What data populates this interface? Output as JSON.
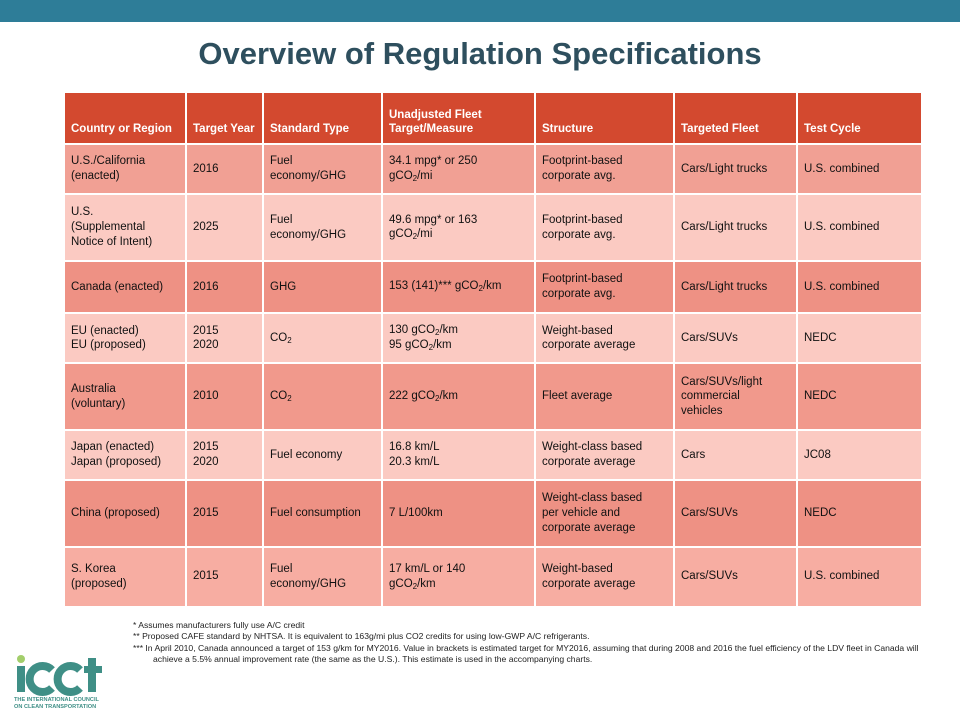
{
  "slide": {
    "title": "Overview of Regulation Specifications",
    "accent_color": "#2e7d98",
    "header_color": "#d3492f"
  },
  "table": {
    "headers": [
      "Country or Region",
      "Target Year",
      "Standard Type",
      "Unadjusted Fleet Target/Measure",
      "Structure",
      "Targeted Fleet",
      "Test Cycle"
    ],
    "rows": [
      {
        "region": [
          "U.S./California",
          "(enacted)"
        ],
        "year": [
          "2016"
        ],
        "standard": [
          "Fuel",
          "economy/GHG"
        ],
        "target": [
          [
            {
              "t": "34.1 mpg* or 250"
            }
          ],
          [
            {
              "t": "gCO"
            },
            {
              "s": "2"
            },
            {
              "t": "/mi"
            }
          ]
        ],
        "structure": [
          "Footprint-based",
          "corporate avg."
        ],
        "fleet": [
          "Cars/Light trucks"
        ],
        "cycle": "U.S. combined"
      },
      {
        "region": [
          "U.S.",
          "(Supplemental",
          "Notice of Intent)"
        ],
        "year": [
          "2025"
        ],
        "standard": [
          "Fuel",
          "economy/GHG"
        ],
        "target": [
          [
            {
              "t": "49.6 mpg* or 163"
            }
          ],
          [
            {
              "t": "gCO"
            },
            {
              "s": "2"
            },
            {
              "t": "/mi"
            }
          ]
        ],
        "structure": [
          "Footprint-based",
          "corporate avg."
        ],
        "fleet": [
          "Cars/Light trucks"
        ],
        "cycle": "U.S. combined"
      },
      {
        "region": [
          "Canada (enacted)"
        ],
        "year": [
          "2016"
        ],
        "standard": [
          "GHG"
        ],
        "target": [
          [
            {
              "t": "153 (141)*** gCO"
            },
            {
              "s": "2"
            },
            {
              "t": "/km"
            }
          ]
        ],
        "structure": [
          "Footprint-based",
          "corporate avg."
        ],
        "fleet": [
          "Cars/Light trucks"
        ],
        "cycle": "U.S. combined"
      },
      {
        "region": [
          "EU (enacted)",
          "EU (proposed)"
        ],
        "year": [
          "2015",
          "2020"
        ],
        "standard_parts": [
          {
            "t": "CO"
          },
          {
            "s": "2"
          }
        ],
        "target": [
          [
            {
              "t": "130 gCO"
            },
            {
              "s": "2"
            },
            {
              "t": "/km"
            }
          ],
          [
            {
              "t": "95 gCO"
            },
            {
              "s": "2"
            },
            {
              "t": "/km"
            }
          ]
        ],
        "structure": [
          "Weight-based",
          "corporate average"
        ],
        "fleet": [
          "Cars/SUVs"
        ],
        "cycle": "NEDC"
      },
      {
        "region": [
          "Australia",
          "(voluntary)"
        ],
        "year": [
          "2010"
        ],
        "standard_parts": [
          {
            "t": "CO"
          },
          {
            "s": "2"
          }
        ],
        "target": [
          [
            {
              "t": "222 gCO"
            },
            {
              "s": "2"
            },
            {
              "t": "/km"
            }
          ]
        ],
        "structure": [
          "Fleet average"
        ],
        "fleet": [
          "Cars/SUVs/light",
          "commercial",
          "vehicles"
        ],
        "cycle": "NEDC"
      },
      {
        "region": [
          "Japan (enacted)",
          "Japan (proposed)"
        ],
        "year": [
          "2015",
          "2020"
        ],
        "standard": [
          "Fuel economy"
        ],
        "target": [
          [
            {
              "t": "16.8 km/L"
            }
          ],
          [
            {
              "t": "20.3 km/L"
            }
          ]
        ],
        "structure": [
          "Weight-class based",
          "corporate average"
        ],
        "fleet": [
          "Cars"
        ],
        "cycle": "JC08"
      },
      {
        "region": [
          "China (proposed)"
        ],
        "year": [
          "2015"
        ],
        "standard": [
          "Fuel consumption"
        ],
        "target": [
          [
            {
              "t": "7 L/100km"
            }
          ]
        ],
        "structure": [
          "Weight-class based",
          "per vehicle and",
          "corporate average"
        ],
        "fleet": [
          "Cars/SUVs"
        ],
        "cycle": "NEDC"
      },
      {
        "region": [
          "S. Korea",
          "(proposed)"
        ],
        "year": [
          "2015"
        ],
        "standard": [
          "Fuel",
          "economy/GHG"
        ],
        "target": [
          [
            {
              "t": "17 km/L or 140"
            }
          ],
          [
            {
              "t": "gCO"
            },
            {
              "s": "2"
            },
            {
              "t": "/km"
            }
          ]
        ],
        "structure": [
          "Weight-based",
          "corporate average"
        ],
        "fleet": [
          "Cars/SUVs"
        ],
        "cycle": "U.S. combined"
      }
    ]
  },
  "footnotes": {
    "f1": "* Assumes manufacturers fully use A/C credit",
    "f2": "** Proposed CAFE standard by NHTSA. It is equivalent to 163g/mi plus CO2 credits for using low-GWP A/C refrigerants.",
    "f3": "*** In April 2010, Canada announced a target of 153 g/km for MY2016. Value in brackets is estimated target for MY2016, assuming that during 2008 and 2016 the fuel efficiency of the LDV fleet in Canada will achieve a 5.5% annual improvement rate (the same as the U.S.). This estimate is used in the accompanying charts."
  },
  "logo": {
    "wordmark": "icct",
    "tagline_1": "THE INTERNATIONAL COUNCIL",
    "tagline_2": "ON CLEAN TRANSPORTATION",
    "icon_name": "icct-logo",
    "primary_color": "#3f8f86",
    "secondary_color": "#a3ce6b"
  }
}
